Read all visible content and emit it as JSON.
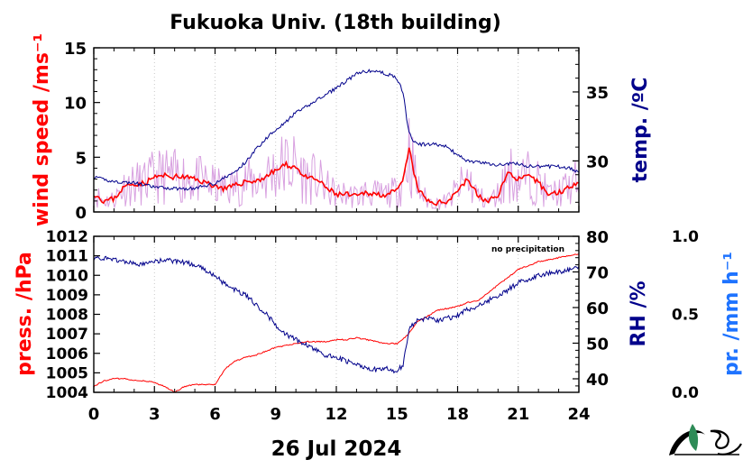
{
  "chart_data": [
    {
      "type": "line",
      "title": "Fukuoka Univ. (18th building)",
      "ylabel_left": "wind speed /ms⁻¹",
      "ylabel_right": "temp. /ºC",
      "xlim": [
        0,
        24
      ],
      "ylim_left": [
        0,
        15
      ],
      "ylim_right": [
        26.3,
        38.2
      ],
      "left_ticks": [
        "0",
        "5",
        "10",
        "15"
      ],
      "right_ticks": [
        "30",
        "35"
      ],
      "colors": {
        "wind": "#ff0000",
        "wind_raw": "#d8a0e0",
        "temp": "#00008b"
      },
      "series": [
        {
          "axis": "left",
          "x": [
            0,
            0.5,
            1,
            1.5,
            2,
            2.5,
            3,
            3.5,
            4,
            4.5,
            5,
            5.5,
            6,
            6.5,
            7,
            7.5,
            8,
            8.5,
            9,
            9.5,
            10,
            10.5,
            11,
            11.5,
            12,
            12.5,
            13,
            13.5,
            14,
            14.5,
            15,
            15.3,
            15.6,
            15.8,
            16,
            16.5,
            17,
            17.5,
            18,
            18.5,
            19,
            19.5,
            20,
            20.5,
            21,
            21.5,
            22,
            22.5,
            23,
            23.5,
            24
          ],
          "values": [
            1.7,
            1.0,
            1.2,
            2.3,
            2.6,
            2.6,
            3.2,
            3.3,
            3.2,
            3.2,
            3.0,
            2.7,
            2.4,
            2.1,
            2.4,
            2.8,
            2.8,
            3.2,
            3.8,
            4.3,
            4.1,
            3.1,
            3.0,
            2.2,
            1.6,
            1.6,
            1.4,
            1.8,
            1.6,
            1.6,
            1.9,
            2.8,
            5.8,
            4.0,
            2.2,
            1.0,
            0.8,
            1.0,
            2.0,
            3.0,
            1.5,
            0.9,
            1.6,
            3.6,
            3.0,
            3.2,
            2.7,
            1.6,
            1.8,
            2.2,
            2.9
          ]
        },
        {
          "axis": "right",
          "x": [
            0,
            1,
            2,
            3,
            4,
            5,
            6,
            7,
            7.5,
            8,
            8.5,
            9,
            9.5,
            10,
            10.5,
            11,
            11.5,
            12,
            12.5,
            13,
            13.5,
            14,
            14.5,
            15,
            15.3,
            15.5,
            15.7,
            16,
            16.5,
            17,
            17.5,
            18,
            18.5,
            19,
            19.5,
            20,
            20.5,
            21,
            21.5,
            22,
            22.5,
            23,
            23.5,
            24
          ],
          "values": [
            28.8,
            28.5,
            28.4,
            28.1,
            28.0,
            28.0,
            28.4,
            29.2,
            29.9,
            30.8,
            31.6,
            32.3,
            32.8,
            33.5,
            33.9,
            34.4,
            34.8,
            35.3,
            35.8,
            36.3,
            36.5,
            36.5,
            36.3,
            36.0,
            35.0,
            32.8,
            31.6,
            31.2,
            31.2,
            31.2,
            31.0,
            30.4,
            30.0,
            29.9,
            29.8,
            29.7,
            29.8,
            29.8,
            29.6,
            29.6,
            29.6,
            29.6,
            29.5,
            29.1
          ]
        }
      ]
    },
    {
      "type": "line",
      "ylabel_left": "press. /hPa",
      "ylabel_right": "RH /%",
      "ylabel_far_right": "pr. /mm h⁻¹",
      "annotation": "no precipitation",
      "xlabel": "26 Jul 2024",
      "xlim": [
        0,
        24
      ],
      "ylim_left": [
        1004,
        1012
      ],
      "ylim_right": [
        36.2,
        80
      ],
      "ylim_far_right": [
        0.0,
        1.0
      ],
      "left_ticks": [
        "1004",
        "1005",
        "1006",
        "1007",
        "1008",
        "1009",
        "1010",
        "1011",
        "1012"
      ],
      "right_ticks": [
        "40",
        "50",
        "60",
        "70",
        "80"
      ],
      "far_right_ticks": [
        "0.0",
        "0.5",
        "1.0"
      ],
      "x_ticks": [
        "0",
        "3",
        "6",
        "9",
        "12",
        "15",
        "18",
        "21",
        "24"
      ],
      "colors": {
        "pressure": "#ff0000",
        "rh": "#00008b",
        "precip_label": "#1e73ff"
      },
      "series": [
        {
          "axis": "left",
          "x": [
            0,
            0.5,
            1,
            1.5,
            2,
            2.5,
            3,
            3.5,
            4,
            4.5,
            5,
            5.5,
            6,
            6.5,
            7,
            7.5,
            8,
            8.5,
            9,
            9.5,
            10,
            10.5,
            11,
            11.5,
            12,
            12.5,
            13,
            13.5,
            14,
            14.5,
            15,
            15.5,
            16,
            16.5,
            17,
            17.5,
            18,
            18.5,
            19,
            19.5,
            20,
            20.5,
            21,
            21.5,
            22,
            22.5,
            23,
            23.5,
            24
          ],
          "values": [
            1004.3,
            1004.6,
            1004.7,
            1004.7,
            1004.6,
            1004.6,
            1004.5,
            1004.3,
            1004.0,
            1004.3,
            1004.4,
            1004.4,
            1004.4,
            1005.2,
            1005.6,
            1005.8,
            1005.9,
            1006.1,
            1006.3,
            1006.4,
            1006.5,
            1006.6,
            1006.6,
            1006.6,
            1006.7,
            1006.7,
            1006.8,
            1006.7,
            1006.6,
            1006.5,
            1006.5,
            1006.9,
            1007.6,
            1007.9,
            1008.2,
            1008.3,
            1008.4,
            1008.6,
            1008.7,
            1009.1,
            1009.5,
            1009.9,
            1010.3,
            1010.5,
            1010.7,
            1010.8,
            1010.9,
            1011.0,
            1011.1
          ]
        },
        {
          "axis": "right",
          "x": [
            0,
            0.5,
            1,
            1.5,
            2,
            2.5,
            3,
            3.5,
            4,
            4.5,
            5,
            5.5,
            6,
            6.5,
            7,
            7.5,
            8,
            8.5,
            9,
            9.5,
            10,
            10.5,
            11,
            11.5,
            12,
            12.5,
            13,
            13.5,
            14,
            14.5,
            15,
            15.3,
            15.6,
            16,
            16.5,
            17,
            17.5,
            18,
            18.5,
            19,
            19.5,
            20,
            20.5,
            21,
            21.5,
            22,
            22.5,
            23,
            23.5,
            24
          ],
          "values": [
            74.0,
            73.7,
            73.5,
            73.0,
            72.2,
            72.0,
            73.0,
            73.3,
            73.0,
            72.6,
            72.0,
            70.5,
            69.0,
            66.5,
            65.0,
            63.5,
            61.0,
            58.5,
            55.0,
            52.5,
            51.0,
            49.5,
            48.0,
            46.5,
            46.0,
            45.0,
            44.0,
            43.0,
            42.5,
            43.0,
            42.0,
            44.0,
            54.0,
            56.5,
            57.0,
            56.5,
            57.0,
            57.8,
            59.5,
            60.5,
            62.0,
            63.0,
            65.0,
            67.0,
            68.0,
            69.0,
            69.6,
            70.1,
            70.6,
            71.2
          ]
        }
      ]
    }
  ]
}
